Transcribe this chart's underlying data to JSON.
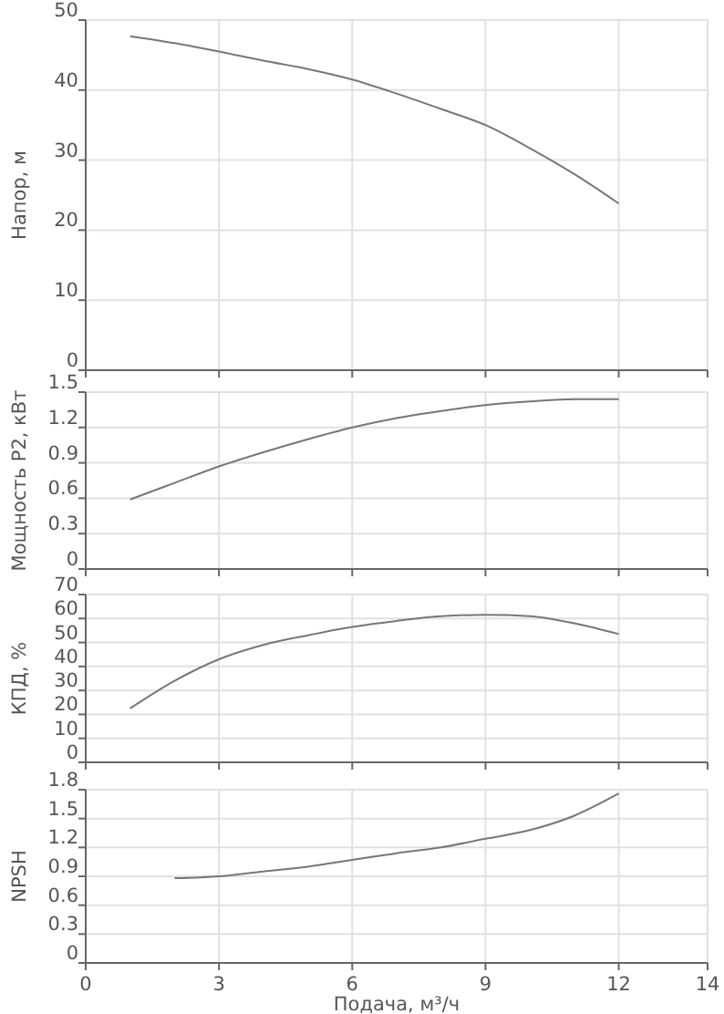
{
  "chart_data": [
    {
      "type": "line",
      "ylabel": "Напор, м",
      "x": [
        1,
        2,
        3,
        4,
        5,
        6,
        7,
        8,
        9,
        10,
        11,
        12
      ],
      "values": [
        47.7,
        46.7,
        45.5,
        44.2,
        43,
        41.5,
        39.5,
        37.3,
        35,
        31.7,
        28,
        23.8
      ],
      "color": "#777777",
      "xlim": [
        0,
        14
      ],
      "xticks": [
        0,
        3,
        6,
        9,
        12,
        14
      ],
      "ylim": [
        0,
        50
      ],
      "yticks": [
        0,
        10,
        20,
        30,
        40,
        50
      ],
      "grid": true,
      "tick_labels": "y"
    },
    {
      "type": "line",
      "ylabel": "Мощность P2, кВт",
      "x": [
        1,
        2,
        3,
        4,
        5,
        6,
        7,
        8,
        9,
        10,
        11,
        12
      ],
      "values": [
        0.59,
        0.73,
        0.87,
        0.99,
        1.1,
        1.2,
        1.28,
        1.34,
        1.39,
        1.42,
        1.44,
        1.44
      ],
      "color": "#777777",
      "xlim": [
        0,
        14
      ],
      "xticks": [
        0,
        3,
        6,
        9,
        12,
        14
      ],
      "ylim": [
        0,
        1.5
      ],
      "yticks": [
        0,
        0.3,
        0.6,
        0.9,
        1.2,
        1.5
      ],
      "grid": true,
      "tick_labels": "y"
    },
    {
      "type": "line",
      "ylabel": "КПД, %",
      "x": [
        1,
        2,
        3,
        4,
        5,
        6,
        7,
        8,
        9,
        10,
        11,
        12
      ],
      "values": [
        22.5,
        34,
        43,
        49,
        53,
        56.5,
        59,
        61,
        61.5,
        61,
        58,
        53.5
      ],
      "color": "#777777",
      "xlim": [
        0,
        14
      ],
      "xticks": [
        0,
        3,
        6,
        9,
        12,
        14
      ],
      "ylim": [
        0,
        70
      ],
      "yticks": [
        0,
        10,
        20,
        30,
        40,
        50,
        60,
        70
      ],
      "grid": true,
      "tick_labels": "y"
    },
    {
      "type": "line",
      "ylabel": "NPSH",
      "xlabel": "Подача, м³/ч",
      "x": [
        2,
        3,
        4,
        5,
        6,
        7,
        8,
        9,
        10,
        11,
        12
      ],
      "values": [
        0.88,
        0.9,
        0.95,
        1.0,
        1.07,
        1.14,
        1.2,
        1.29,
        1.38,
        1.53,
        1.76
      ],
      "color": "#777777",
      "xlim": [
        0,
        14
      ],
      "xticks": [
        0,
        3,
        6,
        9,
        12,
        14
      ],
      "ylim": [
        0,
        1.8
      ],
      "yticks": [
        0,
        0.3,
        0.6,
        0.9,
        1.2,
        1.5,
        1.8
      ],
      "grid": true
    }
  ]
}
